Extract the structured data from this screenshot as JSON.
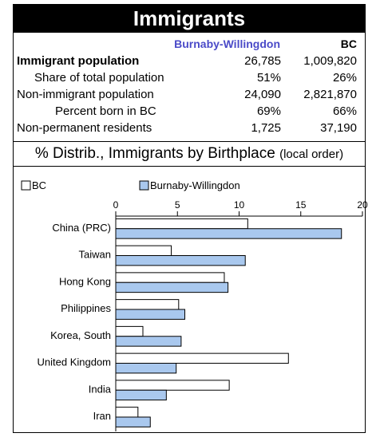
{
  "header": {
    "title": "Immigrants"
  },
  "table": {
    "columns": [
      "Burnaby-Willingdon",
      "BC"
    ],
    "rows": [
      {
        "label": "Immigrant population",
        "bold": true,
        "indent": 0,
        "v1": "26,785",
        "v2": "1,009,820"
      },
      {
        "label": "Share of total population",
        "bold": false,
        "indent": 1,
        "v1": "51%",
        "v2": "26%"
      },
      {
        "label": "Non-immigrant population",
        "bold": false,
        "indent": 0,
        "v1": "24,090",
        "v2": "2,821,870"
      },
      {
        "label": "Percent born in BC",
        "bold": false,
        "indent": 2,
        "v1": "69%",
        "v2": "66%"
      },
      {
        "label": "Non-permanent residents",
        "bold": false,
        "indent": 0,
        "v1": "1,725",
        "v2": "37,190"
      }
    ]
  },
  "subtitle": {
    "main": "% Distrib., Immigrants by Birthplace",
    "note": "(local order)"
  },
  "colors": {
    "region": "#a9c8ee",
    "region_border": "#000000",
    "bc": "#ffffff",
    "header_text": "#4a4ac8"
  },
  "chart_data": {
    "type": "bar",
    "orientation": "horizontal",
    "categories": [
      "China (PRC)",
      "Taiwan",
      "Hong Kong",
      "Philippines",
      "Korea, South",
      "United Kingdom",
      "India",
      "Iran"
    ],
    "series": [
      {
        "name": "BC",
        "values": [
          10.7,
          4.5,
          8.8,
          5.1,
          2.2,
          14.0,
          9.2,
          1.8
        ]
      },
      {
        "name": "Burnaby-Willingdon",
        "values": [
          18.3,
          10.5,
          9.1,
          5.6,
          5.3,
          4.9,
          4.1,
          2.8
        ]
      }
    ],
    "xlim": [
      0,
      20
    ],
    "xticks": [
      0,
      5,
      10,
      15,
      20
    ],
    "legend": "top"
  }
}
